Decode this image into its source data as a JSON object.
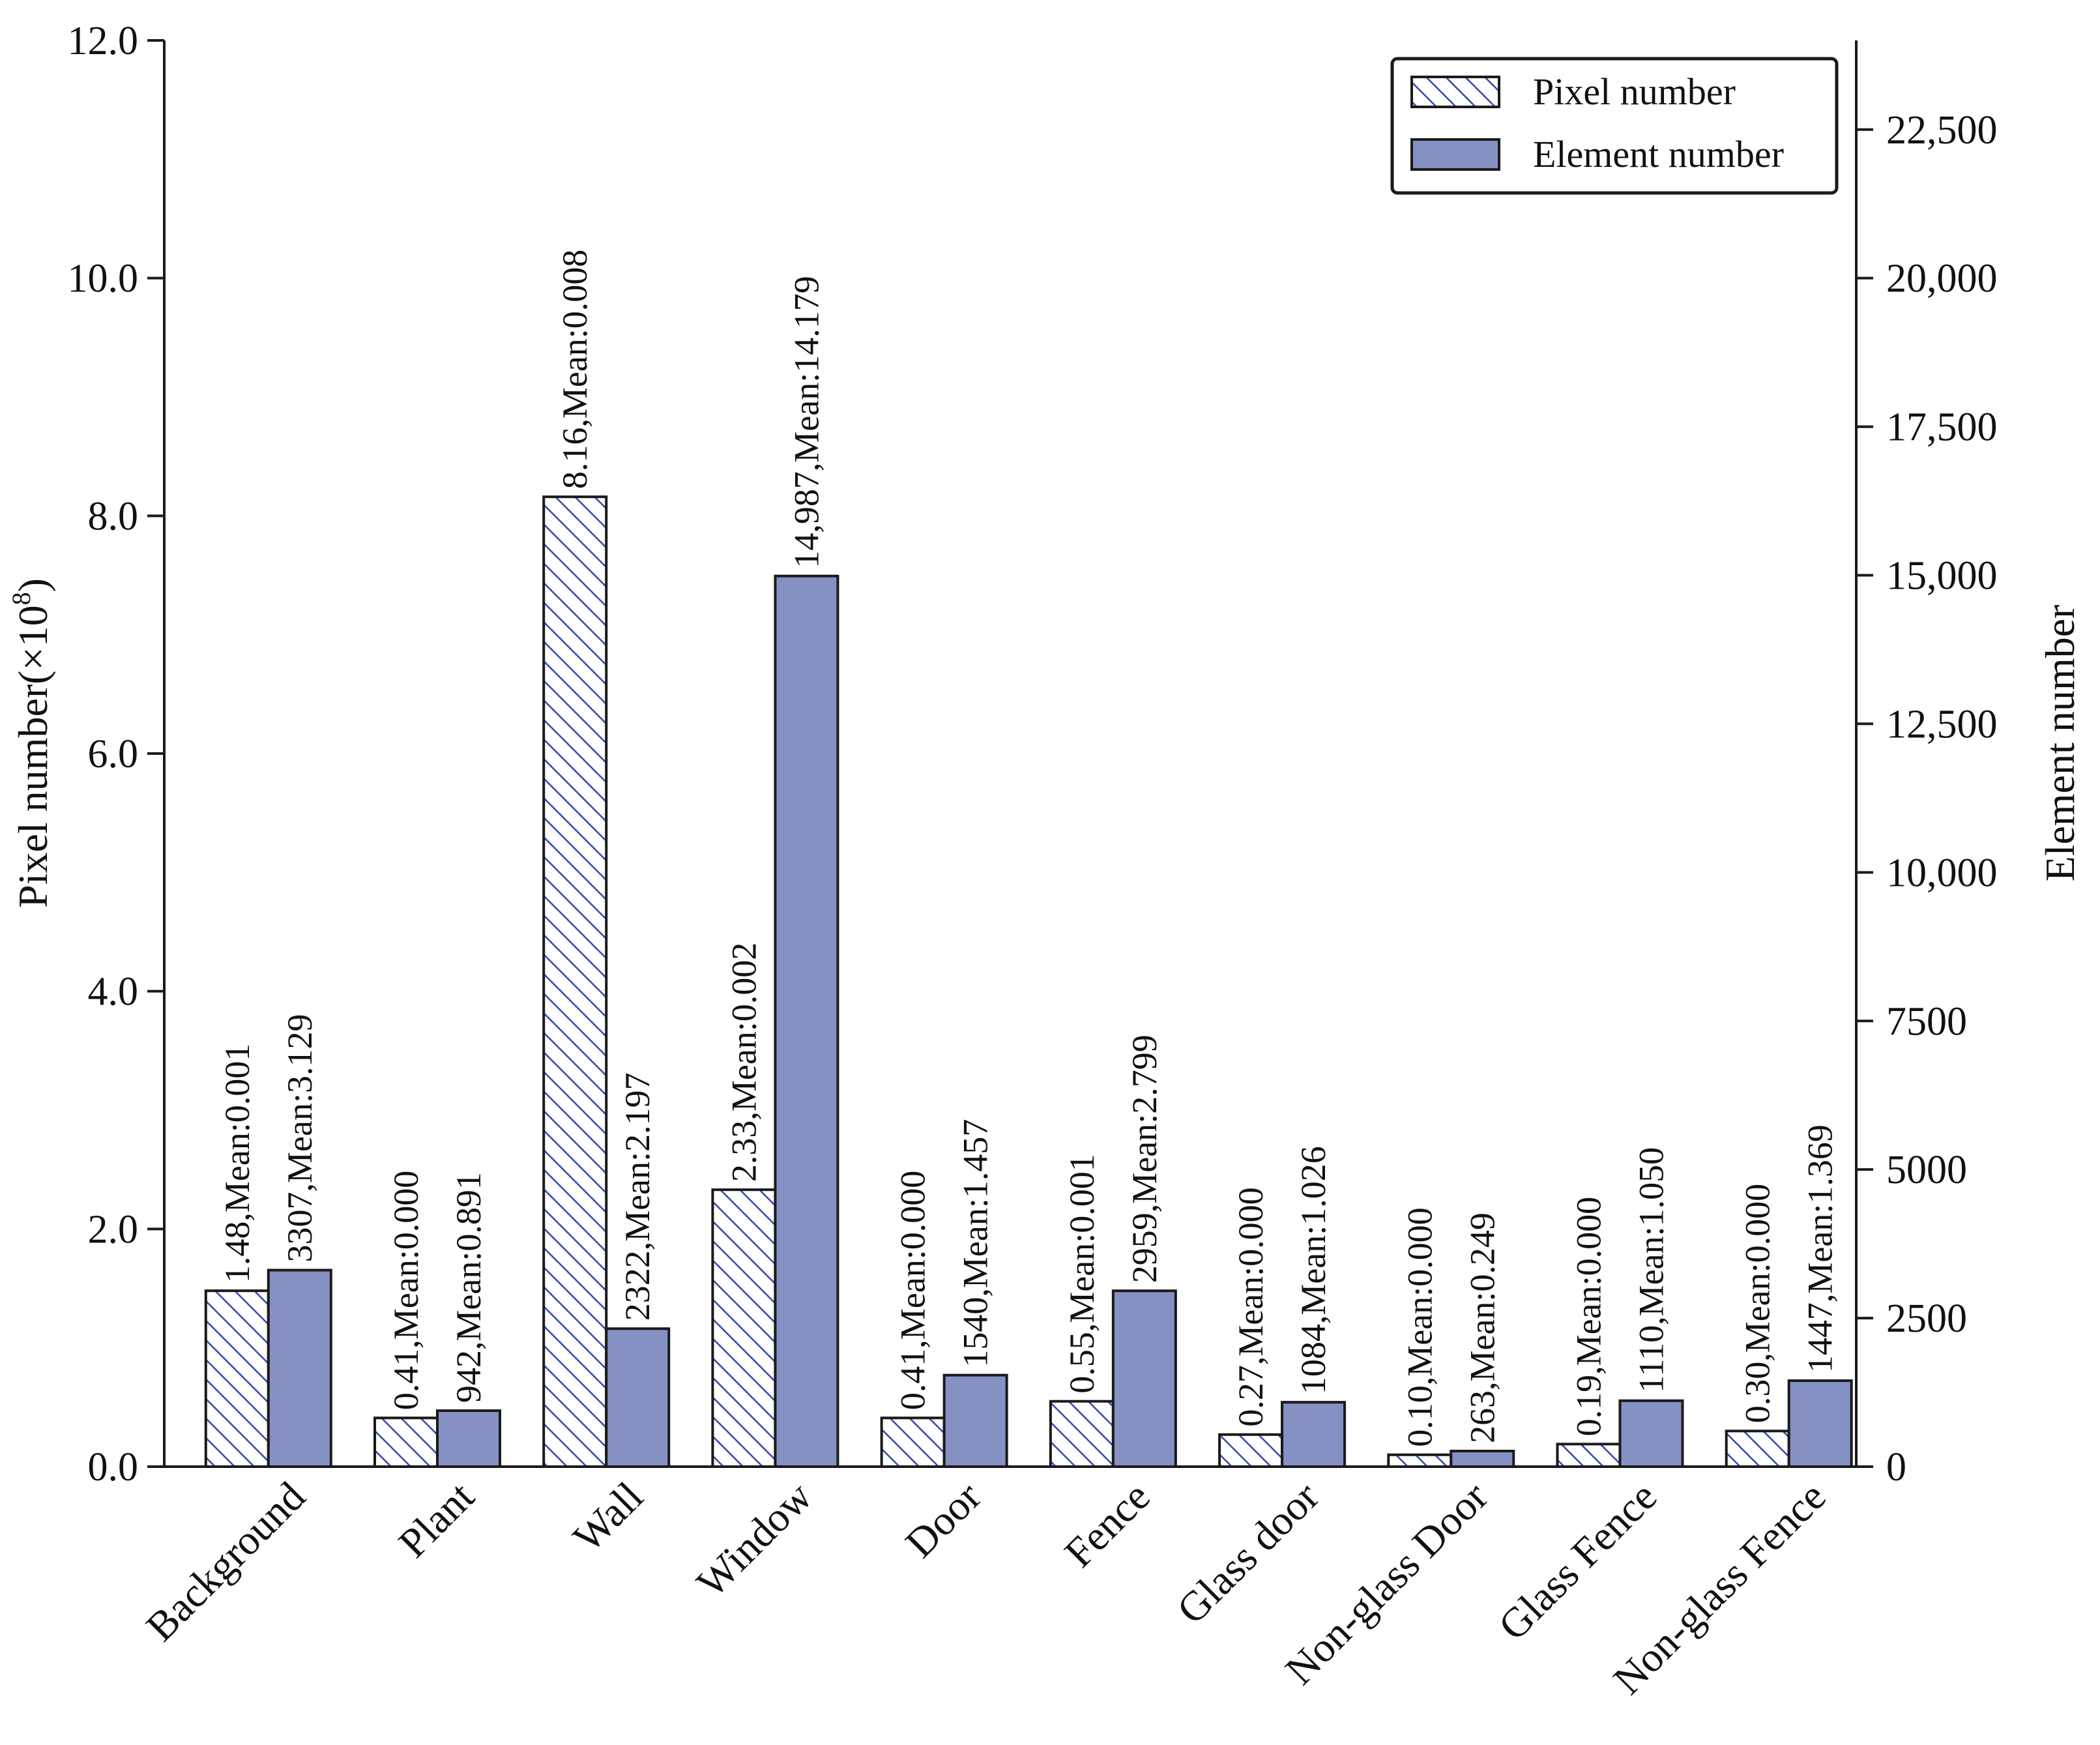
{
  "chart_data": {
    "type": "bar",
    "categories": [
      "Background",
      "Plant",
      "Wall",
      "Window",
      "Door",
      "Fence",
      "Glass door",
      "Non-glass Door",
      "Glass Fence",
      "Non-glass Fence"
    ],
    "series": [
      {
        "name": "Pixel number",
        "axis": "left",
        "values": [
          1.48,
          0.41,
          8.16,
          2.33,
          0.41,
          0.55,
          0.27,
          0.1,
          0.19,
          0.3
        ],
        "labels": [
          "1.48,Mean:0.001",
          "0.41,Mean:0.000",
          "8.16,Mean:0.008",
          "2.33,Mean:0.002",
          "0.41,Mean:0.000",
          "0.55,Mean:0.001",
          "0.27,Mean:0.000",
          "0.10,Mean:0.000",
          "0.19,Mean:0.000",
          "0.30,Mean:0.000"
        ]
      },
      {
        "name": "Element number",
        "axis": "right",
        "values": [
          3307,
          942,
          2322,
          14987,
          1540,
          2959,
          1084,
          263,
          1110,
          1447
        ],
        "labels": [
          "3307,Mean:3.129",
          "942,Mean:0.891",
          "2322,Mean:2.197",
          "14,987,Mean:14.179",
          "1540,Mean:1.457",
          "2959,Mean:2.799",
          "1084,Mean:1.026",
          "263,Mean:0.249",
          "1110,Mean:1.050",
          "1447,Mean:1.369"
        ]
      }
    ],
    "ylabel": "Pixel number(×10⁸)",
    "ylabel_main": "Pixel number(×10",
    "ylabel_exp": "8",
    "ylabel_close": ")",
    "y2label": "Element number",
    "ylim": [
      0,
      12
    ],
    "y2lim": [
      0,
      24000
    ],
    "yticks": [
      0,
      2,
      4,
      6,
      8,
      10,
      12
    ],
    "ytick_labels": [
      "0.0",
      "2.0",
      "4.0",
      "6.0",
      "8.0",
      "10.0",
      "12.0"
    ],
    "y2ticks": [
      0,
      2500,
      5000,
      7500,
      10000,
      12500,
      15000,
      17500,
      20000,
      22500
    ],
    "y2tick_labels": [
      "0",
      "2500",
      "5000",
      "7500",
      "10,000",
      "12,500",
      "15,000",
      "17,500",
      "20,000",
      "22,500"
    ],
    "legend_position": "top-right",
    "colors": {
      "element": "#8591c3",
      "hatch": "#3a4fb0",
      "axis": "#1a1a1a"
    }
  }
}
